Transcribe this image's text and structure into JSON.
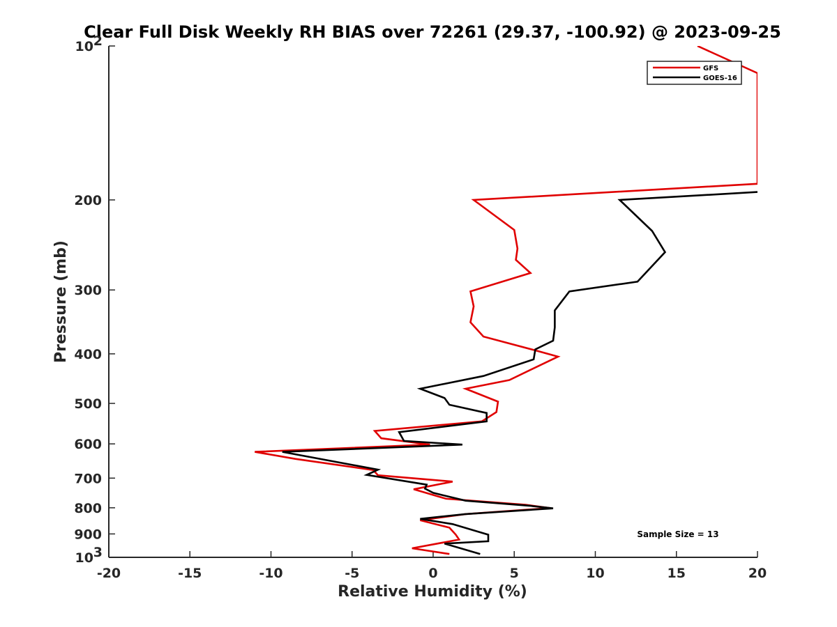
{
  "chart_data": {
    "type": "line",
    "title": "Clear Full Disk Weekly RH BIAS over 72261 (29.37, -100.92) @ 2023-09-25",
    "xlabel": "Relative Humidity (%)",
    "ylabel": "Pressure (mb)",
    "xlim": [
      -20,
      20
    ],
    "ylim": [
      100,
      1000
    ],
    "y_scale": "log",
    "y_reversed": true,
    "x_ticks": [
      "-20",
      "-15",
      "-10",
      "-5",
      "0",
      "5",
      "10",
      "15",
      "20"
    ],
    "y_ticks": [
      {
        "value": 100,
        "base": "10",
        "exp": "2"
      },
      {
        "value": 200,
        "label": "200"
      },
      {
        "value": 300,
        "label": "300"
      },
      {
        "value": 400,
        "label": "400"
      },
      {
        "value": 500,
        "label": "500"
      },
      {
        "value": 600,
        "label": "600"
      },
      {
        "value": 700,
        "label": "700"
      },
      {
        "value": 800,
        "label": "800"
      },
      {
        "value": 900,
        "label": "900"
      },
      {
        "value": 1000,
        "base": "10",
        "exp": "3"
      }
    ],
    "legend_position": "top-right",
    "annotation": "Sample Size = 13",
    "series": [
      {
        "name": "GFS",
        "color": "#e00000",
        "points": [
          [
            16.3,
            100
          ],
          [
            20,
            113
          ],
          [
            20,
            186
          ],
          [
            2.5,
            200
          ],
          [
            5.0,
            229
          ],
          [
            5.2,
            249
          ],
          [
            5.1,
            262
          ],
          [
            6.0,
            278
          ],
          [
            2.3,
            302
          ],
          [
            2.5,
            323
          ],
          [
            2.3,
            347
          ],
          [
            3.1,
            370
          ],
          [
            6.2,
            393
          ],
          [
            7.7,
            405
          ],
          [
            4.7,
            450
          ],
          [
            2.0,
            468
          ],
          [
            4.0,
            496
          ],
          [
            3.9,
            520
          ],
          [
            3.0,
            542
          ],
          [
            -3.6,
            566
          ],
          [
            -3.2,
            585
          ],
          [
            -0.2,
            602
          ],
          [
            -11.0,
            622
          ],
          [
            -8.5,
            642
          ],
          [
            -3.7,
            675
          ],
          [
            -3.4,
            691
          ],
          [
            1.2,
            711
          ],
          [
            -1.2,
            736
          ],
          [
            0.8,
            768
          ],
          [
            5.7,
            789
          ],
          [
            7.2,
            801
          ],
          [
            2.0,
            823
          ],
          [
            -0.8,
            846
          ],
          [
            1.0,
            875
          ],
          [
            1.4,
            903
          ],
          [
            1.6,
            923
          ],
          [
            -1.3,
            960
          ],
          [
            1.0,
            985
          ]
        ]
      },
      {
        "name": "GOES-16",
        "color": "#000000",
        "points": [
          [
            20,
            193
          ],
          [
            11.5,
            200
          ],
          [
            13.5,
            230
          ],
          [
            14.3,
            253
          ],
          [
            12.6,
            289
          ],
          [
            8.4,
            302
          ],
          [
            7.5,
            329
          ],
          [
            7.5,
            355
          ],
          [
            7.4,
            377
          ],
          [
            6.3,
            392
          ],
          [
            6.2,
            410
          ],
          [
            3.1,
            442
          ],
          [
            -0.8,
            468
          ],
          [
            0.7,
            488
          ],
          [
            1.0,
            503
          ],
          [
            3.3,
            522
          ],
          [
            3.3,
            542
          ],
          [
            -2.1,
            569
          ],
          [
            -1.8,
            592
          ],
          [
            1.8,
            602
          ],
          [
            -9.3,
            622
          ],
          [
            -3.4,
            674
          ],
          [
            -4.1,
            690
          ],
          [
            -0.4,
            721
          ],
          [
            -0.5,
            734
          ],
          [
            0.0,
            748
          ],
          [
            2.0,
            775
          ],
          [
            6.0,
            793
          ],
          [
            7.4,
            802
          ],
          [
            2.0,
            823
          ],
          [
            -0.8,
            841
          ],
          [
            1.2,
            861
          ],
          [
            3.4,
            903
          ],
          [
            3.4,
            930
          ],
          [
            0.7,
            940
          ],
          [
            2.9,
            985
          ]
        ]
      }
    ]
  }
}
